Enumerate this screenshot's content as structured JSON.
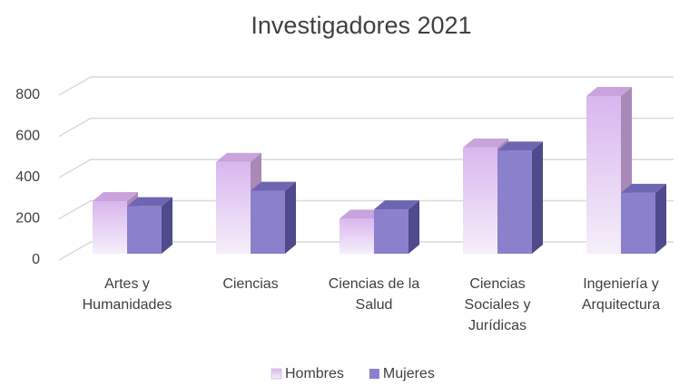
{
  "chart_data": {
    "type": "bar3d",
    "title": "Investigadores 2021",
    "categories": [
      "Artes y\nHumanidades",
      "Ciencias",
      "Ciencias de la\nSalud",
      "Ciencias\nSociales y\nJurídicas",
      "Ingeniería y\nArquitectura"
    ],
    "series": [
      {
        "name": "Hombres",
        "color": "#dcc0ee",
        "values": [
          255,
          445,
          170,
          515,
          765
        ]
      },
      {
        "name": "Mujeres",
        "color": "#8a80cc",
        "values": [
          230,
          305,
          215,
          500,
          295
        ]
      }
    ],
    "ylim": [
      0,
      800
    ],
    "yticks": [
      0,
      200,
      400,
      600,
      800
    ],
    "grid": true,
    "legend": "bottom"
  }
}
